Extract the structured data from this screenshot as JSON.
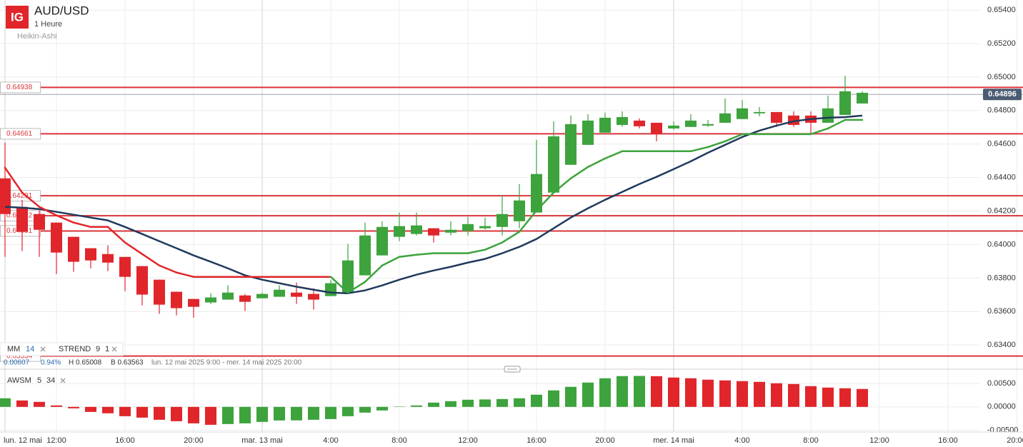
{
  "chart_data": [
    {
      "type": "candlestick",
      "title": "AUD/USD",
      "subtitle": "1 Heure",
      "style_name": "Heikin-Ashi",
      "categories": [
        "lun. 12 mai",
        null,
        null,
        "12:00",
        null,
        null,
        null,
        "16:00",
        null,
        null,
        null,
        "20:00",
        null,
        null,
        null,
        "mar. 13 mai",
        null,
        null,
        null,
        "4:00",
        null,
        null,
        null,
        "8:00",
        null,
        null,
        null,
        "12:00",
        null,
        null,
        null,
        "16:00",
        null,
        null,
        null,
        "20:00",
        null,
        null,
        null,
        "mer. 14 mai",
        null,
        null,
        null,
        "4:00",
        null,
        null,
        null,
        "8:00",
        null,
        null,
        null,
        "12:00",
        null,
        null,
        null,
        "16:00",
        null,
        null,
        null,
        "20:00"
      ],
      "open": [
        0.64395,
        0.64225,
        0.64182,
        0.64131,
        0.64046,
        0.63978,
        0.63943,
        0.63926,
        0.63871,
        0.6379,
        0.63718,
        0.63675,
        0.63654,
        0.63671,
        0.63696,
        0.63679,
        0.63688,
        0.63713,
        0.63705,
        0.63692,
        0.63713,
        0.63816,
        0.63935,
        0.64046,
        0.64063,
        0.64097,
        0.64071,
        0.6408,
        0.64097,
        0.64105,
        0.64139,
        0.64191,
        0.6431,
        0.64476,
        0.64595,
        0.64668,
        0.64714,
        0.6474,
        0.64727,
        0.64693,
        0.64702,
        0.6471,
        0.64727,
        0.64749,
        0.64783,
        0.64791,
        0.6477,
        0.6477,
        0.64727,
        0.64774,
        0.64842,
        null,
        null,
        null,
        null,
        null,
        null,
        null,
        null,
        null
      ],
      "high": [
        0.64608,
        0.64267,
        0.64203,
        0.64131,
        0.64046,
        0.63978,
        0.63995,
        0.63926,
        0.63871,
        0.6379,
        0.63718,
        0.63675,
        0.63709,
        0.63756,
        0.63705,
        0.63713,
        0.63756,
        0.63773,
        0.63739,
        0.6379,
        0.64003,
        0.64131,
        0.64139,
        0.64191,
        0.64191,
        0.64097,
        0.64139,
        0.64165,
        0.64161,
        0.64293,
        0.64361,
        0.64625,
        0.64736,
        0.6477,
        0.64778,
        0.64787,
        0.64795,
        0.64753,
        0.64727,
        0.64736,
        0.64778,
        0.64744,
        0.64872,
        0.64864,
        0.64821,
        0.64791,
        0.64795,
        0.64795,
        0.64889,
        0.65008,
        0.64915,
        null,
        null,
        null,
        null,
        null,
        null,
        null,
        null,
        null
      ],
      "low": [
        0.63926,
        0.63961,
        0.63926,
        0.63824,
        0.63837,
        0.63858,
        0.63841,
        0.63722,
        0.63637,
        0.63586,
        0.63577,
        0.63563,
        0.63645,
        0.63671,
        0.63603,
        0.63679,
        0.63688,
        0.63645,
        0.63611,
        0.63692,
        0.63713,
        0.63816,
        0.63935,
        0.6402,
        0.64054,
        0.64012,
        0.64054,
        0.64054,
        0.64088,
        0.64054,
        0.64097,
        0.64191,
        0.6431,
        0.64476,
        0.64595,
        0.64668,
        0.64702,
        0.64693,
        0.64616,
        0.64685,
        0.64702,
        0.64702,
        0.64727,
        0.64749,
        0.64766,
        0.64702,
        0.64702,
        0.64659,
        0.64727,
        0.64774,
        0.64842,
        null,
        null,
        null,
        null,
        null,
        null,
        null,
        null,
        null
      ],
      "close": [
        0.64182,
        0.64076,
        0.64088,
        0.63952,
        0.63897,
        0.63905,
        0.63892,
        0.63807,
        0.63701,
        0.63641,
        0.6362,
        0.63628,
        0.63684,
        0.63713,
        0.63658,
        0.63705,
        0.6373,
        0.63688,
        0.63671,
        0.63769,
        0.63905,
        0.64054,
        0.64105,
        0.6411,
        0.64114,
        0.64054,
        0.64088,
        0.64122,
        0.6411,
        0.64182,
        0.64263,
        0.64421,
        0.64646,
        0.64719,
        0.6474,
        0.64757,
        0.64761,
        0.64706,
        0.64659,
        0.6471,
        0.6474,
        0.64719,
        0.64783,
        0.64813,
        0.64791,
        0.64727,
        0.64714,
        0.64727,
        0.64813,
        0.64915,
        0.64906,
        null,
        null,
        null,
        null,
        null,
        null,
        null,
        null,
        null
      ],
      "up_color": "#3da33d",
      "down_color": "#e0262b",
      "ylim": [
        0.6326,
        0.6546
      ],
      "yticks": [
        {
          "value": 0.634,
          "label": "0.63400"
        },
        {
          "value": 0.636,
          "label": "0.63600"
        },
        {
          "value": 0.638,
          "label": "0.63800"
        },
        {
          "value": 0.64,
          "label": "0.64000"
        },
        {
          "value": 0.642,
          "label": "0.64200"
        },
        {
          "value": 0.644,
          "label": "0.64400"
        },
        {
          "value": 0.646,
          "label": "0.64600"
        },
        {
          "value": 0.648,
          "label": "0.64800"
        },
        {
          "value": 0.65,
          "label": "0.65000"
        },
        {
          "value": 0.652,
          "label": "0.65200"
        },
        {
          "value": 0.654,
          "label": "0.65400"
        }
      ],
      "grid": true,
      "last_price": 0.64896,
      "levels": [
        0.64938,
        0.64661,
        0.64291,
        0.64172,
        0.64081,
        0.63334
      ],
      "level_color": "#d9363a",
      "indicators": [
        {
          "name": "MM",
          "params": [
            14
          ],
          "color": "#1f3a5c",
          "values": [
            0.64225,
            0.6422,
            0.64212,
            0.64195,
            0.64178,
            0.64161,
            0.64144,
            0.64105,
            0.64063,
            0.6402,
            0.63978,
            0.63935,
            0.63897,
            0.63858,
            0.63816,
            0.6379,
            0.63769,
            0.63748,
            0.6373,
            0.63713,
            0.63709,
            0.63726,
            0.63756,
            0.6379,
            0.6382,
            0.63845,
            0.63867,
            0.63892,
            0.63914,
            0.63948,
            0.63986,
            0.64033,
            0.64097,
            0.64161,
            0.64216,
            0.64267,
            0.64314,
            0.64361,
            0.64404,
            0.6445,
            0.64497,
            0.64548,
            0.64595,
            0.64642,
            0.6468,
            0.6471,
            0.64736,
            0.64749,
            0.64757,
            0.64761,
            0.6477,
            null,
            null,
            null,
            null,
            null,
            null,
            null,
            null,
            null
          ]
        },
        {
          "name": "STREND",
          "params": [
            9,
            1
          ],
          "up_color": "#3da33d",
          "down_color": "#e0262b",
          "values": [
            0.64459,
            0.6431,
            0.64225,
            0.64174,
            0.64131,
            0.64105,
            0.64105,
            0.64012,
            0.63943,
            0.63875,
            0.63833,
            0.63807,
            0.63807,
            0.63807,
            0.63807,
            0.63807,
            0.63807,
            0.63807,
            0.63807,
            0.63807,
            0.63713,
            0.63777,
            0.63875,
            0.63926,
            0.63939,
            0.63948,
            0.63948,
            0.63948,
            0.63969,
            0.64012,
            0.64076,
            0.64203,
            0.6431,
            0.64395,
            0.64463,
            0.64514,
            0.64557,
            0.64557,
            0.64557,
            0.64557,
            0.64557,
            0.64582,
            0.64616,
            0.64659,
            0.64659,
            0.64659,
            0.64659,
            0.64659,
            0.64693,
            0.64744,
            0.64744,
            null,
            null,
            null,
            null,
            null,
            null,
            null,
            null,
            null
          ]
        }
      ],
      "info": {
        "change": "0.00607",
        "change_pct": "0.94%",
        "high": "H 0.65008",
        "low": "B 0.63563",
        "range": "lun. 12 mai 2025 9:00 - mer. 14 mai 2025 20:00"
      }
    },
    {
      "type": "bar",
      "title": "AWSM",
      "params": [
        5,
        34
      ],
      "up_color": "#3da33d",
      "down_color": "#e0262b",
      "values": [
        0.00185,
        0.00138,
        0.00108,
        0.00031,
        -0.00031,
        -0.00108,
        -0.00138,
        -0.002,
        -0.00231,
        -0.00277,
        -0.00308,
        -0.00354,
        -0.00385,
        -0.00369,
        -0.00354,
        -0.00323,
        -0.00292,
        -0.0029,
        -0.00277,
        -0.00262,
        -0.002,
        -0.00123,
        -0.00077,
        5e-05,
        0.00031,
        0.00092,
        0.00123,
        0.00154,
        0.0016,
        0.00169,
        0.00185,
        0.00262,
        0.00354,
        0.00431,
        0.00523,
        0.00615,
        0.00662,
        0.00665,
        0.0066,
        0.00631,
        0.00615,
        0.00585,
        0.00569,
        0.00554,
        0.00538,
        0.00508,
        0.00492,
        0.00446,
        0.00415,
        0.004,
        0.00385,
        null,
        null,
        null,
        null,
        null,
        null,
        null,
        null,
        null
      ],
      "ylim": [
        -0.0054,
        0.0078
      ],
      "yticks": [
        {
          "value": -0.005,
          "label": "-0.00500"
        },
        {
          "value": 0,
          "label": "0.00000"
        },
        {
          "value": 0.005,
          "label": "0.00500"
        }
      ],
      "grid": true
    }
  ]
}
